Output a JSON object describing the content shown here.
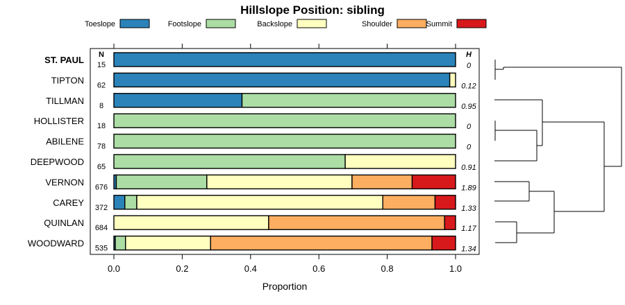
{
  "chart_data": {
    "type": "bar",
    "orientation": "horizontal",
    "stacked": true,
    "title": "Hillslope Position: sibling",
    "xlabel": "Proportion",
    "xlim": [
      0,
      1
    ],
    "xticks": [
      "0.0",
      "0.2",
      "0.4",
      "0.6",
      "0.8",
      "1.0"
    ],
    "n_header": "N",
    "h_header": "H",
    "legend": [
      {
        "name": "Toeslope",
        "color": "#2b83ba"
      },
      {
        "name": "Footslope",
        "color": "#abdda4"
      },
      {
        "name": "Backslope",
        "color": "#ffffbf"
      },
      {
        "name": "Shoulder",
        "color": "#fdae61"
      },
      {
        "name": "Summit",
        "color": "#d7191c"
      }
    ],
    "categories": [
      "ST. PAUL",
      "TIPTON",
      "TILLMAN",
      "HOLLISTER",
      "ABILENE",
      "DEEPWOOD",
      "VERNON",
      "CAREY",
      "QUINLAN",
      "WOODWARD"
    ],
    "highlight": "ST. PAUL",
    "n": [
      "15",
      "62",
      "8",
      "18",
      "78",
      "65",
      "676",
      "372",
      "684",
      "535"
    ],
    "h": [
      "0",
      "0.12",
      "0.95",
      "0",
      "0",
      "0.91",
      "1.89",
      "1.33",
      "1.17",
      "1.34"
    ],
    "series": [
      {
        "name": "Toeslope",
        "values": [
          1.0,
          0.983,
          0.375,
          0,
          0,
          0,
          0.007,
          0.032,
          0,
          0.004
        ]
      },
      {
        "name": "Footslope",
        "values": [
          0,
          0,
          0.625,
          1.0,
          1.0,
          0.677,
          0.265,
          0.035,
          0,
          0.03
        ]
      },
      {
        "name": "Backslope",
        "values": [
          0,
          0.017,
          0,
          0,
          0,
          0.323,
          0.425,
          0.72,
          0.453,
          0.249
        ]
      },
      {
        "name": "Shoulder",
        "values": [
          0,
          0,
          0,
          0,
          0,
          0,
          0.176,
          0.153,
          0.515,
          0.648
        ]
      },
      {
        "name": "Summit",
        "values": [
          0,
          0,
          0,
          0,
          0,
          0,
          0.127,
          0.06,
          0.032,
          0.069
        ]
      }
    ],
    "dendrogram": "hierarchical clustering of categories"
  }
}
